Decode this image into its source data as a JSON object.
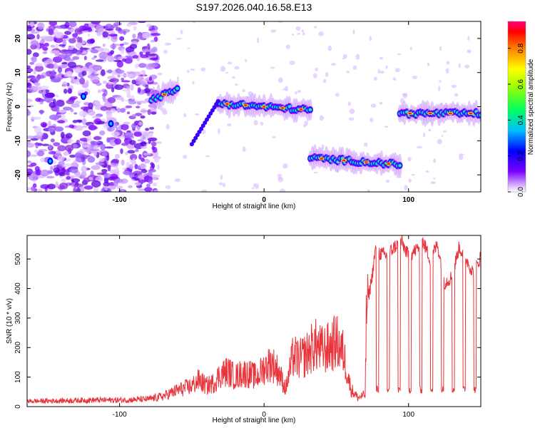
{
  "title": "S197.2026.040.16.58.E13",
  "chart_data": [
    {
      "type": "heatmap",
      "xlabel": "Height of straight line (km)",
      "ylabel": "Frequency (Hz)",
      "xlim": [
        -164,
        150
      ],
      "ylim": [
        -25,
        25
      ],
      "xticks": [
        -100,
        0,
        100
      ],
      "yticks": [
        -20,
        -10,
        0,
        10,
        20
      ],
      "colorbar": {
        "label": "Normalized spectral amplitude",
        "range": [
          0,
          0.95
        ],
        "ticks": [
          0.0,
          0.2,
          0.4,
          0.6,
          0.8
        ]
      },
      "ridge_segments": [
        {
          "x": [
            -78,
            -60
          ],
          "freq": [
            2,
            5
          ]
        },
        {
          "x": [
            -32,
            32
          ],
          "freq": [
            1,
            -1
          ]
        },
        {
          "x": [
            32,
            94
          ],
          "freq": [
            -15,
            -17
          ]
        },
        {
          "x": [
            94,
            150
          ],
          "freq": [
            -2,
            -2
          ]
        }
      ],
      "noise_region_x": [
        -164,
        -80
      ]
    },
    {
      "type": "line",
      "xlabel": "Height of straight line (km)",
      "ylabel": "SNR (10 * v/v)",
      "xlim": [
        -164,
        150
      ],
      "ylim": [
        0,
        580
      ],
      "xticks": [
        -100,
        0,
        100
      ],
      "yticks": [
        0,
        100,
        200,
        300,
        400,
        500
      ],
      "color": "#e8343a",
      "series": [
        {
          "name": "SNR",
          "x": [
            -164,
            -140,
            -120,
            -100,
            -80,
            -70,
            -60,
            -50,
            -45,
            -40,
            -35,
            -30,
            -25,
            -20,
            -15,
            -10,
            -5,
            0,
            5,
            10,
            15,
            20,
            25,
            30,
            35,
            40,
            45,
            50,
            55,
            60,
            65,
            70,
            71,
            73,
            75,
            77,
            80,
            85,
            90,
            95,
            100,
            105,
            110,
            115,
            120,
            125,
            130,
            135,
            140,
            145,
            150
          ],
          "values": [
            18,
            20,
            22,
            22,
            25,
            35,
            55,
            70,
            90,
            70,
            80,
            110,
            120,
            100,
            115,
            110,
            100,
            130,
            150,
            120,
            60,
            170,
            160,
            180,
            210,
            190,
            200,
            220,
            180,
            60,
            30,
            40,
            350,
            390,
            450,
            530,
            520,
            510,
            540,
            560,
            510,
            530,
            560,
            500,
            550,
            420,
            440,
            540,
            500,
            450,
            510
          ]
        }
      ]
    }
  ]
}
